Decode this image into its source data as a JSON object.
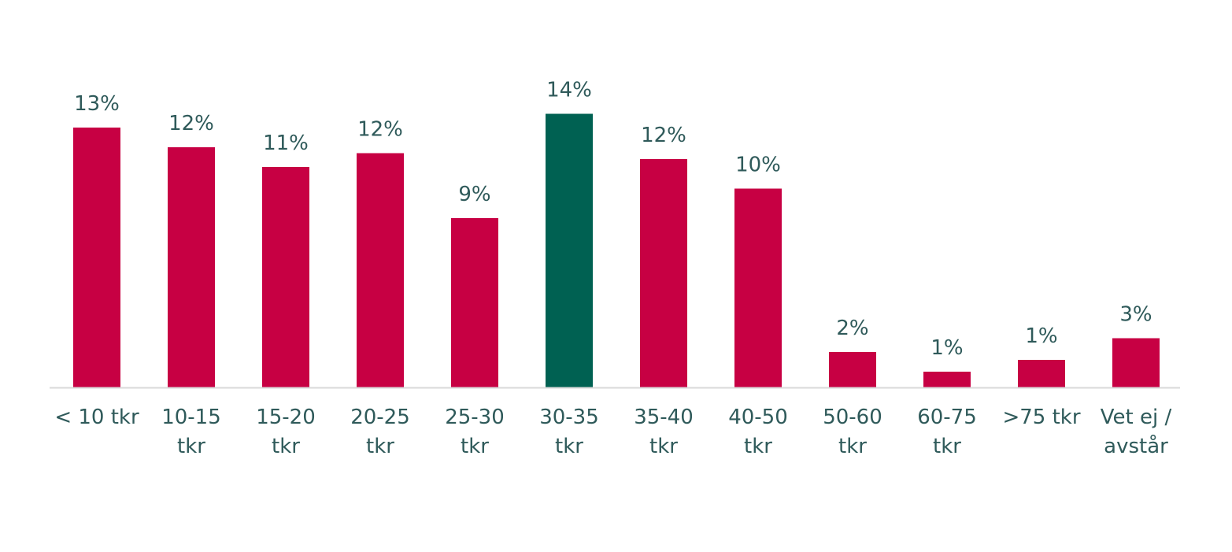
{
  "chart_data": {
    "type": "bar",
    "categories": [
      [
        "< 10 tkr"
      ],
      [
        "10-15",
        "tkr"
      ],
      [
        "15-20",
        "tkr"
      ],
      [
        "20-25",
        "tkr"
      ],
      [
        "25-30",
        "tkr"
      ],
      [
        "30-35",
        "tkr"
      ],
      [
        "35-40",
        "tkr"
      ],
      [
        "40-50",
        "tkr"
      ],
      [
        "50-60",
        "tkr"
      ],
      [
        "60-75",
        "tkr"
      ],
      [
        ">75 tkr"
      ],
      [
        "Vet ej /",
        "avstår"
      ]
    ],
    "values": [
      13.2,
      12.2,
      11.2,
      11.9,
      8.6,
      13.9,
      11.6,
      10.1,
      1.8,
      0.8,
      1.4,
      2.5
    ],
    "data_labels": [
      "13%",
      "12%",
      "11%",
      "12%",
      "9%",
      "14%",
      "12%",
      "10%",
      "2%",
      "1%",
      "1%",
      "3%"
    ],
    "highlight_index": 5,
    "colors": {
      "bar": "#c70043",
      "highlight": "#006152",
      "axis": "#d9d9d9",
      "text": "#2f5a5a"
    },
    "title": "",
    "xlabel": "",
    "ylabel": "",
    "ylim": [
      0,
      14
    ],
    "grid": false,
    "legend": "none"
  }
}
